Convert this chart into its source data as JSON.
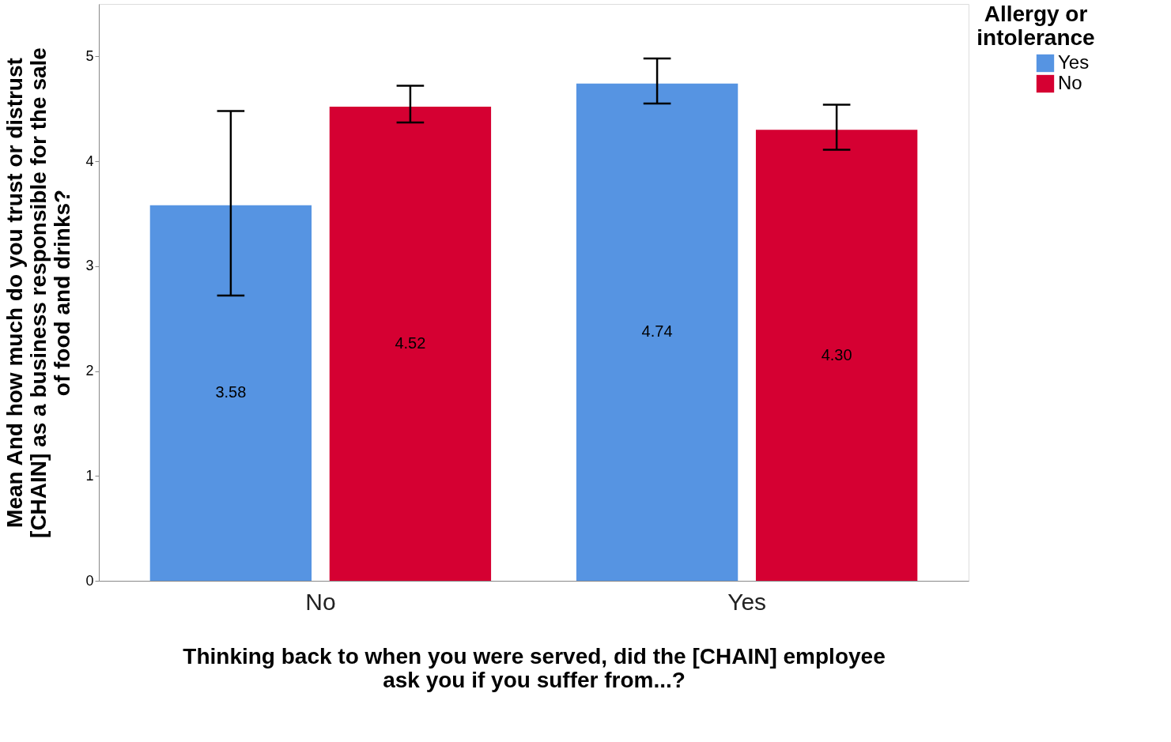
{
  "chart_data": {
    "type": "bar",
    "xlabel": "Thinking back to when you were served, did the [CHAIN] employee ask you if you suffer from...?",
    "ylabel": "Mean And how much do you trust or distrust [CHAIN] as a business responsible for the sale of food and drinks?",
    "legend_title": "Allergy or intolerance",
    "categories": [
      "No",
      "Yes"
    ],
    "series": [
      {
        "name": "Yes",
        "color": "#5694e2",
        "values": [
          3.58,
          4.74
        ],
        "value_labels": [
          "3.58",
          "4.74"
        ],
        "errors": [
          [
            2.72,
            4.48
          ],
          [
            4.55,
            4.98
          ]
        ]
      },
      {
        "name": "No",
        "color": "#d50032",
        "values": [
          4.52,
          4.3
        ],
        "value_labels": [
          "4.52",
          "4.30"
        ],
        "errors": [
          [
            4.37,
            4.72
          ],
          [
            4.11,
            4.54
          ]
        ]
      }
    ],
    "ylim": [
      0,
      5.5
    ],
    "yticks": [
      0,
      1,
      2,
      3,
      4,
      5
    ],
    "grid": false,
    "legend": "top right"
  }
}
